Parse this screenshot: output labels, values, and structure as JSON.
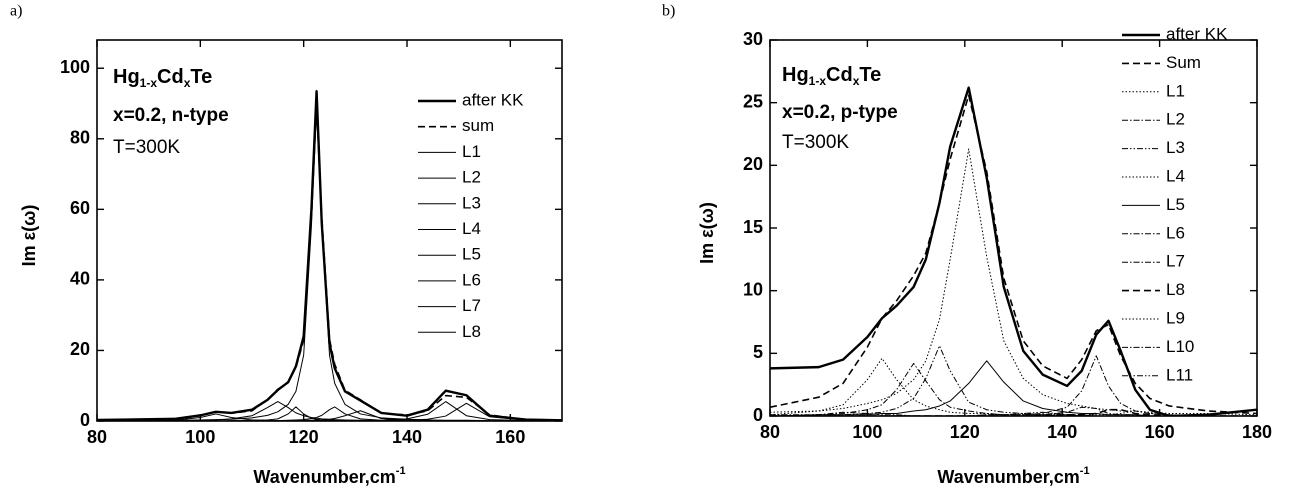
{
  "chart_data": [
    {
      "type": "line",
      "panel_label": "a)",
      "formula": [
        "Hg",
        "1-x",
        "Cd",
        "x",
        "Te"
      ],
      "annotation": "x=0.2, n-type",
      "temperature": "T=300K",
      "x_label": [
        "Wavenumber,cm",
        "-1"
      ],
      "y_label": "Im ε(ω)",
      "xlim": [
        80,
        170
      ],
      "ylim": [
        0,
        108
      ],
      "xticks": [
        80,
        100,
        120,
        140,
        160
      ],
      "yticks": [
        0,
        20,
        40,
        60,
        80,
        100
      ],
      "x": [
        80,
        95,
        100,
        103,
        106,
        110,
        113,
        115,
        117,
        118.5,
        120,
        121.5,
        122.5,
        123.5,
        125,
        126,
        128,
        131,
        135,
        140,
        144,
        147.5,
        151.5,
        156,
        163,
        170
      ],
      "series": [
        {
          "name": "after KK",
          "color": "#000000",
          "line_style": "thick",
          "values": [
            0.3,
            0.6,
            1.6,
            2.6,
            2.3,
            3.2,
            6.0,
            8.8,
            11.0,
            15.5,
            24,
            60,
            93.5,
            56,
            22,
            15,
            8.4,
            5.8,
            2.3,
            1.5,
            3.2,
            8.6,
            7.3,
            1.5,
            0.4,
            0.2
          ]
        },
        {
          "name": "sum",
          "color": "#000000",
          "line_style": "dashed",
          "values": [
            0.1,
            0.5,
            1.5,
            2.7,
            2.2,
            2.9,
            6.1,
            9.0,
            10.9,
            15.2,
            22.9,
            58.0,
            90.6,
            58.1,
            23.2,
            16.1,
            8.7,
            6.0,
            2.2,
            1.7,
            2.9,
            7.2,
            6.7,
            1.7,
            0.4,
            0.3
          ]
        },
        {
          "name": "L1",
          "color": "#000000",
          "line_style": "thin",
          "values": [
            0.0,
            0.2,
            1.0,
            2.0,
            1.0,
            0.3,
            0.2,
            0.1,
            0.1,
            0.1,
            0.1,
            0.0,
            0.0,
            0.0,
            0.0,
            0.0,
            0.0,
            0.0,
            0.0,
            0.0,
            0.0,
            0.0,
            0.0,
            0.0,
            0.0,
            0.0
          ]
        },
        {
          "name": "L2",
          "color": "#000000",
          "line_style": "thin",
          "values": [
            0.0,
            0.1,
            0.2,
            0.3,
            0.6,
            1.5,
            3.8,
            5.5,
            3.8,
            2.3,
            1.5,
            1.0,
            0.8,
            0.6,
            0.5,
            0.4,
            0.3,
            0.2,
            0.1,
            0.1,
            0.1,
            0.0,
            0.0,
            0.0,
            0.0,
            0.0
          ]
        },
        {
          "name": "L3",
          "color": "#000000",
          "line_style": "thin",
          "values": [
            0.0,
            0.0,
            0.0,
            0.0,
            0.1,
            0.1,
            0.3,
            0.6,
            2.0,
            4.0,
            2.0,
            0.8,
            0.5,
            0.3,
            0.2,
            0.2,
            0.1,
            0.1,
            0.0,
            0.0,
            0.0,
            0.0,
            0.0,
            0.0,
            0.0,
            0.0
          ]
        },
        {
          "name": "L4",
          "color": "#000000",
          "line_style": "thin",
          "values": [
            0.1,
            0.2,
            0.3,
            0.4,
            0.5,
            0.9,
            1.6,
            2.6,
            4.7,
            8.4,
            18.7,
            55.3,
            88,
            55.3,
            18.7,
            10.7,
            4.7,
            2.0,
            0.9,
            0.5,
            0.3,
            0.2,
            0.2,
            0.1,
            0.1,
            0.1
          ]
        },
        {
          "name": "L5",
          "color": "#000000",
          "line_style": "thin",
          "values": [
            0.0,
            0.0,
            0.0,
            0.0,
            0.0,
            0.1,
            0.1,
            0.1,
            0.2,
            0.3,
            0.4,
            0.7,
            1.0,
            1.6,
            3.2,
            4.0,
            2.0,
            0.6,
            0.2,
            0.1,
            0.0,
            0.0,
            0.0,
            0.0,
            0.0,
            0.0
          ]
        },
        {
          "name": "L6",
          "color": "#000000",
          "line_style": "thin",
          "values": [
            0.0,
            0.0,
            0.0,
            0.0,
            0.0,
            0.0,
            0.1,
            0.1,
            0.1,
            0.1,
            0.2,
            0.2,
            0.3,
            0.3,
            0.5,
            0.7,
            1.5,
            2.9,
            0.7,
            0.2,
            0.1,
            0.1,
            0.0,
            0.0,
            0.0,
            0.0
          ]
        },
        {
          "name": "L7",
          "color": "#000000",
          "line_style": "thin",
          "values": [
            0.0,
            0.0,
            0.0,
            0.0,
            0.0,
            0.0,
            0.0,
            0.0,
            0.0,
            0.0,
            0.0,
            0.0,
            0.0,
            0.0,
            0.1,
            0.1,
            0.1,
            0.1,
            0.2,
            0.6,
            1.9,
            5.5,
            1.5,
            0.4,
            0.1,
            0.1
          ]
        },
        {
          "name": "L8",
          "color": "#000000",
          "line_style": "thin",
          "values": [
            0.0,
            0.0,
            0.0,
            0.0,
            0.0,
            0.0,
            0.0,
            0.0,
            0.0,
            0.0,
            0.0,
            0.0,
            0.0,
            0.0,
            0.0,
            0.0,
            0.0,
            0.1,
            0.1,
            0.2,
            0.5,
            1.4,
            5.0,
            1.2,
            0.2,
            0.1
          ]
        }
      ]
    },
    {
      "type": "line",
      "panel_label": "b)",
      "formula": [
        "Hg",
        "1-x",
        "Cd",
        "x",
        "Te"
      ],
      "annotation": "x=0.2, p-type",
      "temperature": "T=300K",
      "x_label": [
        "Wavenumber,cm",
        "-1"
      ],
      "y_label": "Im ε(ω)",
      "xlim": [
        80,
        180
      ],
      "ylim": [
        0,
        30
      ],
      "xticks": [
        80,
        100,
        120,
        140,
        160,
        180
      ],
      "yticks": [
        0,
        5,
        10,
        15,
        20,
        25,
        30
      ],
      "x": [
        80,
        90,
        95,
        100,
        103,
        106,
        109.5,
        112,
        114.8,
        117,
        120.8,
        124.5,
        128,
        132,
        136,
        141,
        144,
        147,
        149.5,
        152,
        155,
        158,
        162,
        170,
        180
      ],
      "series": [
        {
          "name": "after KK",
          "color": "#000000",
          "line_style": "thick",
          "values": [
            3.8,
            3.9,
            4.5,
            6.3,
            7.8,
            8.8,
            10.3,
            12.5,
            17.0,
            21.5,
            26.2,
            19.0,
            10.3,
            5.2,
            3.3,
            2.4,
            3.6,
            6.5,
            7.6,
            5.2,
            2.1,
            0.5,
            0.0,
            0.1,
            0.5
          ]
        },
        {
          "name": "Sum",
          "color": "#000000",
          "line_style": "dashed",
          "values": [
            0.7,
            1.5,
            2.6,
            5.5,
            7.8,
            9.2,
            11.2,
            13.0,
            17.0,
            20.5,
            25.6,
            19.5,
            11.0,
            6.0,
            4.0,
            3.0,
            4.5,
            6.8,
            7.3,
            4.8,
            2.6,
            1.4,
            0.8,
            0.4,
            0.2
          ]
        },
        {
          "name": "L1",
          "color": "#000000",
          "line_style": "dotted",
          "values": [
            0.1,
            0.4,
            0.9,
            2.9,
            4.6,
            2.9,
            1.3,
            0.8,
            0.5,
            0.3,
            0.2,
            0.2,
            0.1,
            0.1,
            0.1,
            0.1,
            0.0,
            0.0,
            0.0,
            0.0,
            0.0,
            0.0,
            0.0,
            0.0,
            0.0
          ]
        },
        {
          "name": "L2",
          "color": "#000000",
          "line_style": "dash-dot",
          "values": [
            0.1,
            0.1,
            0.2,
            0.5,
            0.9,
            2.1,
            4.2,
            2.8,
            1.3,
            0.7,
            0.4,
            0.2,
            0.1,
            0.1,
            0.1,
            0.0,
            0.0,
            0.0,
            0.0,
            0.0,
            0.0,
            0.0,
            0.0,
            0.0,
            0.0
          ]
        },
        {
          "name": "L3",
          "color": "#000000",
          "line_style": "dash-dot-dot",
          "values": [
            0.0,
            0.1,
            0.1,
            0.2,
            0.3,
            0.6,
            1.4,
            3.0,
            5.6,
            3.6,
            1.1,
            0.5,
            0.3,
            0.2,
            0.1,
            0.1,
            0.0,
            0.0,
            0.0,
            0.0,
            0.0,
            0.0,
            0.0,
            0.0,
            0.0
          ]
        },
        {
          "name": "L4",
          "color": "#000000",
          "line_style": "dotted",
          "values": [
            0.3,
            0.4,
            0.6,
            1.0,
            1.3,
            1.8,
            2.9,
            4.4,
            7.7,
            12.5,
            21.3,
            12.7,
            6.0,
            3.0,
            1.7,
            1.0,
            0.8,
            0.6,
            0.5,
            0.4,
            0.4,
            0.3,
            0.2,
            0.2,
            0.1
          ]
        },
        {
          "name": "L5",
          "color": "#000000",
          "line_style": "thin",
          "values": [
            0.0,
            0.1,
            0.1,
            0.1,
            0.2,
            0.2,
            0.4,
            0.5,
            0.8,
            1.2,
            2.6,
            4.4,
            2.7,
            1.2,
            0.6,
            0.3,
            0.2,
            0.2,
            0.1,
            0.1,
            0.1,
            0.0,
            0.0,
            0.0,
            0.0
          ]
        },
        {
          "name": "L6",
          "color": "#000000",
          "line_style": "dash-dot",
          "values": [
            0.0,
            0.0,
            0.0,
            0.0,
            0.0,
            0.0,
            0.0,
            0.0,
            0.0,
            0.0,
            0.0,
            0.1,
            0.1,
            0.1,
            0.2,
            0.7,
            2.0,
            4.8,
            2.4,
            1.0,
            0.4,
            0.2,
            0.1,
            0.0,
            0.0
          ]
        },
        {
          "name": "L7",
          "color": "#000000",
          "line_style": "dash-dot",
          "values": [
            0.0,
            0.0,
            0.0,
            0.0,
            0.0,
            0.0,
            0.0,
            0.0,
            0.0,
            0.0,
            0.0,
            0.0,
            0.0,
            0.0,
            0.1,
            0.3,
            0.7,
            0.6,
            0.2,
            0.1,
            0.1,
            0.0,
            0.0,
            0.0,
            0.0
          ]
        },
        {
          "name": "L8",
          "color": "#000000",
          "line_style": "dashed",
          "values": [
            0.0,
            0.0,
            0.0,
            0.0,
            0.0,
            0.0,
            0.0,
            0.0,
            0.0,
            0.0,
            0.0,
            0.0,
            0.0,
            0.0,
            0.0,
            0.1,
            0.1,
            0.2,
            0.5,
            0.5,
            0.2,
            0.1,
            0.0,
            0.0,
            0.0
          ]
        },
        {
          "name": "L9",
          "color": "#000000",
          "line_style": "dotted",
          "values": [
            0.0,
            0.0,
            0.0,
            0.0,
            0.0,
            0.0,
            0.0,
            0.0,
            0.0,
            0.0,
            0.0,
            0.0,
            0.0,
            0.0,
            0.0,
            0.0,
            0.0,
            0.1,
            0.1,
            0.2,
            0.4,
            0.2,
            0.1,
            0.0,
            0.0
          ]
        },
        {
          "name": "L10",
          "color": "#000000",
          "line_style": "dash-dot",
          "values": [
            0.0,
            0.1,
            0.3,
            0.2,
            0.1,
            0.1,
            0.0,
            0.0,
            0.0,
            0.0,
            0.0,
            0.0,
            0.0,
            0.0,
            0.0,
            0.0,
            0.0,
            0.0,
            0.0,
            0.0,
            0.0,
            0.0,
            0.0,
            0.0,
            0.0
          ]
        },
        {
          "name": "L11",
          "color": "#000000",
          "line_style": "dash-dot-dot",
          "values": [
            0.0,
            0.0,
            0.0,
            0.0,
            0.0,
            0.0,
            0.0,
            0.0,
            0.0,
            0.0,
            0.0,
            0.1,
            0.1,
            0.2,
            0.3,
            0.1,
            0.1,
            0.0,
            0.0,
            0.0,
            0.0,
            0.0,
            0.0,
            0.0,
            0.0
          ]
        }
      ]
    }
  ]
}
